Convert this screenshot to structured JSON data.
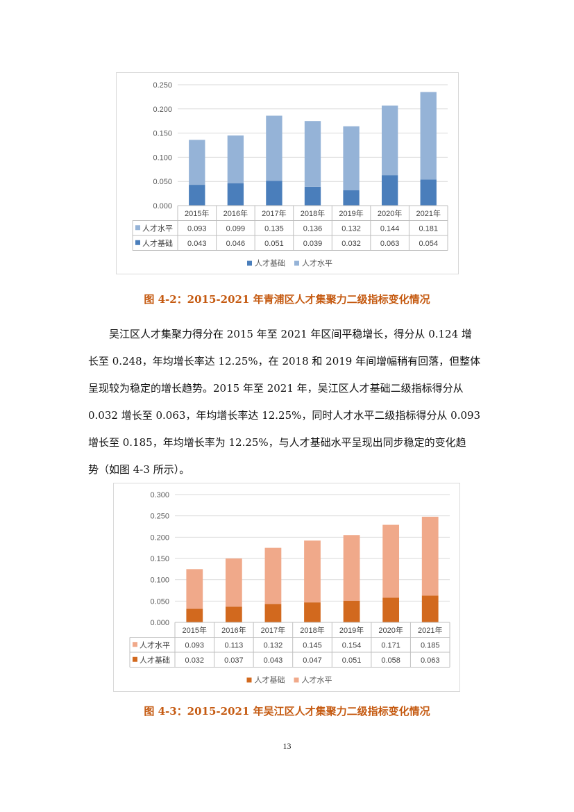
{
  "figures": [
    {
      "caption": "图 4-2：2015-2021 年青浦区人才集聚力二级指标变化情况",
      "colors": {
        "base": "#4a7ebb",
        "level": "#95b3d7"
      }
    },
    {
      "caption": "图 4-3：2015-2021 年吴江区人才集聚力二级指标变化情况",
      "colors": {
        "base": "#d2691e",
        "level": "#f0a98a"
      }
    }
  ],
  "paragraph": [
    "吴江区人才集聚力得分在 2015 年至 2021 年区间平稳增长，得分从 0.124 增",
    "长至 0.248，年均增长率达 12.25%，在 2018 和 2019 年间增幅稍有回落，但整体",
    "呈现较为稳定的增长趋势。2015 年至 2021 年，吴江区人才基础二级指标得分从",
    "0.032 增长至 0.063，年均增长率达 12.25%，同时人才水平二级指标得分从 0.093",
    "增长至 0.185，年均增长率为 12.25%，与人才基础水平呈现出同步稳定的变化趋",
    "势（如图 4-3 所示）。"
  ],
  "page_number": "13",
  "chart_data": [
    {
      "type": "bar",
      "stacked": true,
      "categories": [
        "2015年",
        "2016年",
        "2017年",
        "2018年",
        "2019年",
        "2020年",
        "2021年"
      ],
      "series": [
        {
          "name": "人才基础",
          "values": [
            0.043,
            0.046,
            0.051,
            0.039,
            0.032,
            0.063,
            0.054
          ],
          "labels": [
            "0.043",
            "0.046",
            "0.051",
            "0.039",
            "0.032",
            "0.063",
            "0.054"
          ]
        },
        {
          "name": "人才水平",
          "values": [
            0.093,
            0.099,
            0.135,
            0.136,
            0.132,
            0.144,
            0.181
          ],
          "labels": [
            "0.093",
            "0.099",
            "0.135",
            "0.136",
            "0.132",
            "0.144",
            "0.181"
          ]
        }
      ],
      "table_rows": [
        "人才水平",
        "人才基础"
      ],
      "yticks": [
        "0.000",
        "0.050",
        "0.100",
        "0.150",
        "0.200",
        "0.250"
      ],
      "ylim": [
        0,
        0.25
      ],
      "grid": true,
      "legend": "bottom",
      "data_table": true
    },
    {
      "type": "bar",
      "stacked": true,
      "categories": [
        "2015年",
        "2016年",
        "2017年",
        "2018年",
        "2019年",
        "2020年",
        "2021年"
      ],
      "series": [
        {
          "name": "人才基础",
          "values": [
            0.032,
            0.037,
            0.043,
            0.047,
            0.051,
            0.058,
            0.063
          ],
          "labels": [
            "0.032",
            "0.037",
            "0.043",
            "0.047",
            "0.051",
            "0.058",
            "0.063"
          ]
        },
        {
          "name": "人才水平",
          "values": [
            0.093,
            0.113,
            0.132,
            0.145,
            0.154,
            0.171,
            0.185
          ],
          "labels": [
            "0.093",
            "0.113",
            "0.132",
            "0.145",
            "0.154",
            "0.171",
            "0.185"
          ]
        }
      ],
      "table_rows": [
        "人才水平",
        "人才基础"
      ],
      "yticks": [
        "0.000",
        "0.050",
        "0.100",
        "0.150",
        "0.200",
        "0.250",
        "0.300"
      ],
      "ylim": [
        0,
        0.3
      ],
      "grid": true,
      "legend": "bottom",
      "data_table": true
    }
  ]
}
